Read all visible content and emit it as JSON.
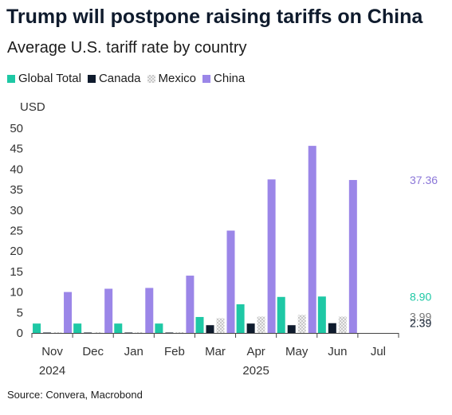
{
  "header": {
    "title": "Trump will postpone raising tariffs on China",
    "subtitle": "Average U.S. tariff rate by country"
  },
  "source": "Source: Convera, Macrobond",
  "chart_data": {
    "type": "bar",
    "title": "Trump will postpone raising tariffs on China",
    "subtitle": "Average U.S. tariff rate by country",
    "ylabel": "USD",
    "xlabel": "",
    "ylim": [
      0,
      50
    ],
    "yticks": [
      0,
      5,
      10,
      15,
      20,
      25,
      30,
      35,
      40,
      45,
      50
    ],
    "grid": false,
    "legend_position": "top-left",
    "categories": [
      "Nov",
      "Dec",
      "Jan",
      "Feb",
      "Mar",
      "Apr",
      "May",
      "Jun",
      "Jul"
    ],
    "year_labels": [
      {
        "category": "Nov",
        "label": "2024"
      },
      {
        "category": "Apr",
        "label": "2025"
      }
    ],
    "series": [
      {
        "name": "Global Total",
        "color": "#1ec8a5",
        "values": [
          2.3,
          2.3,
          2.3,
          2.3,
          3.9,
          7.0,
          8.8,
          8.9,
          null
        ]
      },
      {
        "name": "Canada",
        "color": "#0f1b2d",
        "values": [
          0.1,
          0.1,
          0.1,
          0.1,
          1.9,
          2.3,
          1.9,
          2.39,
          null
        ]
      },
      {
        "name": "Mexico",
        "color": "#d9d9d9",
        "values": [
          0.2,
          0.2,
          0.2,
          0.2,
          3.6,
          4.0,
          4.4,
          3.99,
          null
        ]
      },
      {
        "name": "China",
        "color": "#9b86e8",
        "values": [
          10.0,
          10.8,
          11.0,
          14.0,
          25.0,
          37.5,
          45.7,
          37.36,
          null
        ]
      }
    ],
    "end_labels": [
      {
        "text": "37.36",
        "value": 37.36,
        "color": "#8b76d8"
      },
      {
        "text": "8.90",
        "value": 8.9,
        "color": "#1ec8a5"
      },
      {
        "text": "3.99",
        "value": 3.99,
        "color": "#777777"
      },
      {
        "text": "2.39",
        "value": 2.39,
        "color": "#0f1b2d"
      }
    ]
  }
}
